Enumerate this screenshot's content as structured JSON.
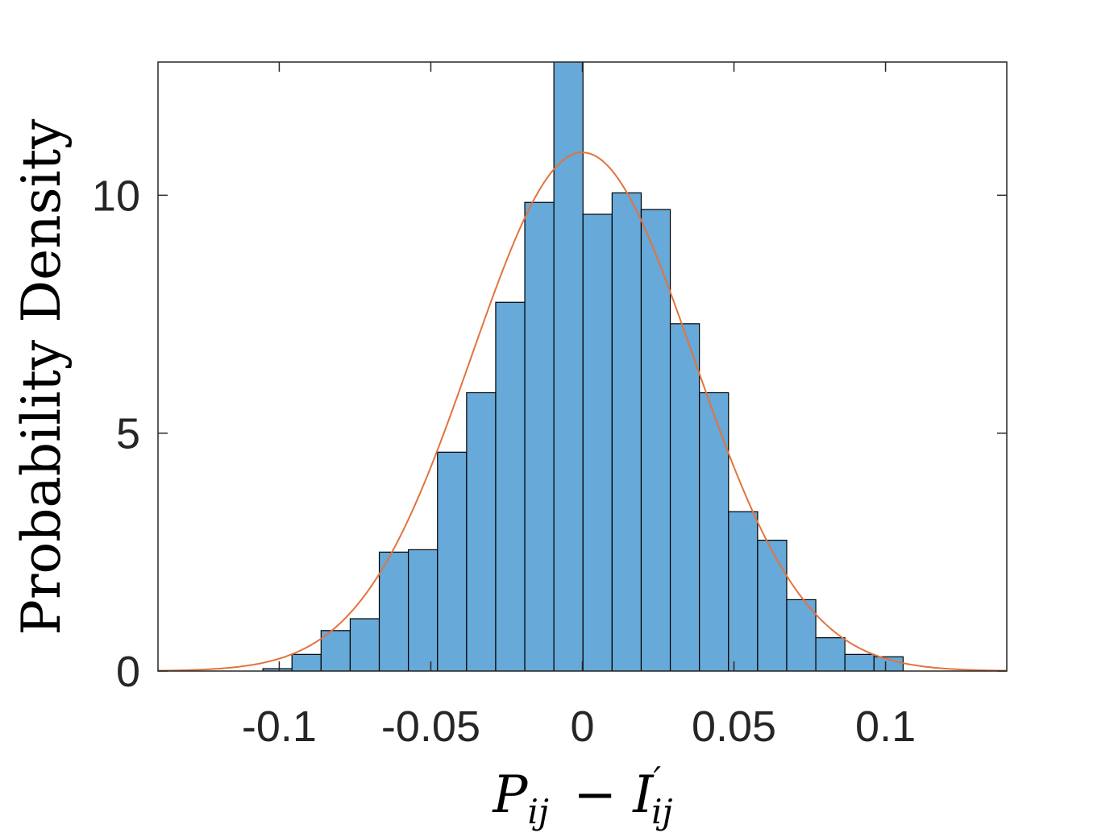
{
  "chart_data": {
    "type": "bar",
    "subtype": "histogram",
    "xlabel": "P_ij − I'_ij",
    "ylabel": "Probability Density",
    "xlim": [
      -0.14,
      0.14
    ],
    "ylim": [
      0,
      12.8
    ],
    "xticks": [
      -0.1,
      -0.05,
      0,
      0.05,
      0.1
    ],
    "xtick_labels": [
      "-0.1",
      "-0.05",
      "0",
      "0.05",
      "0.1"
    ],
    "yticks": [
      0,
      5,
      10
    ],
    "ytick_labels": [
      "0",
      "5",
      "10"
    ],
    "bin_width": 0.0096,
    "bins": [
      {
        "x0": -0.1054,
        "x1": -0.0958,
        "value": 0.05
      },
      {
        "x0": -0.0958,
        "x1": -0.0862,
        "value": 0.35
      },
      {
        "x0": -0.0862,
        "x1": -0.0766,
        "value": 0.85
      },
      {
        "x0": -0.0766,
        "x1": -0.067,
        "value": 1.1
      },
      {
        "x0": -0.067,
        "x1": -0.0574,
        "value": 2.5
      },
      {
        "x0": -0.0574,
        "x1": -0.0478,
        "value": 2.55
      },
      {
        "x0": -0.0478,
        "x1": -0.0382,
        "value": 4.6
      },
      {
        "x0": -0.0382,
        "x1": -0.0286,
        "value": 5.85
      },
      {
        "x0": -0.0286,
        "x1": -0.019,
        "value": 7.75
      },
      {
        "x0": -0.019,
        "x1": -0.0094,
        "value": 9.85
      },
      {
        "x0": -0.0094,
        "x1": 0.0002,
        "value": 12.9
      },
      {
        "x0": 0.0002,
        "x1": 0.0098,
        "value": 9.6
      },
      {
        "x0": 0.0098,
        "x1": 0.0194,
        "value": 10.05
      },
      {
        "x0": 0.0194,
        "x1": 0.029,
        "value": 9.7
      },
      {
        "x0": 0.029,
        "x1": 0.0386,
        "value": 7.3
      },
      {
        "x0": 0.0386,
        "x1": 0.0482,
        "value": 5.85
      },
      {
        "x0": 0.0482,
        "x1": 0.0578,
        "value": 3.35
      },
      {
        "x0": 0.0578,
        "x1": 0.0674,
        "value": 2.75
      },
      {
        "x0": 0.0674,
        "x1": 0.077,
        "value": 1.5
      },
      {
        "x0": 0.077,
        "x1": 0.0866,
        "value": 0.7
      },
      {
        "x0": 0.0866,
        "x1": 0.0962,
        "value": 0.35
      },
      {
        "x0": 0.0962,
        "x1": 0.1058,
        "value": 0.3
      }
    ],
    "fit_curve": {
      "type": "normal",
      "mean": 0.0,
      "std": 0.0366,
      "peak": 10.9
    },
    "colors": {
      "bar_fill": "#67a9d8",
      "bar_edge": "#000000",
      "curve": "#e2733f",
      "axes": "#262626"
    },
    "grid": false,
    "legend": "none"
  }
}
